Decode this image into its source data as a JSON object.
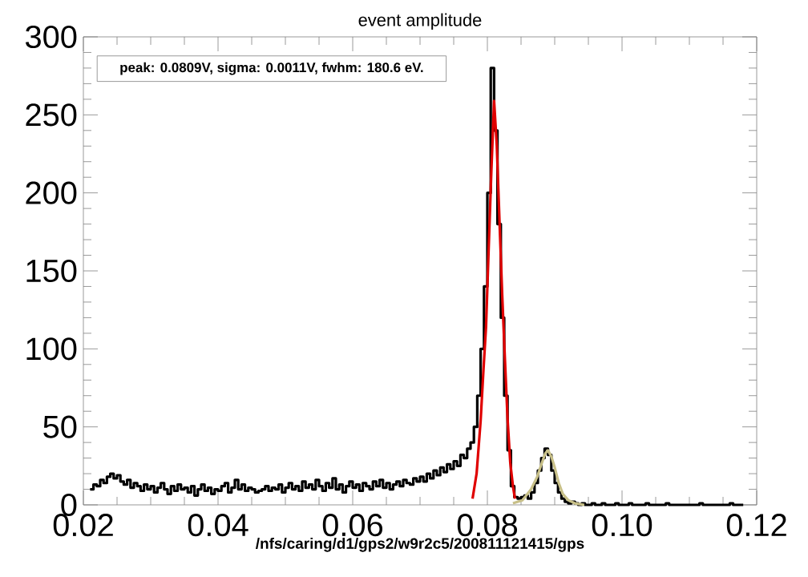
{
  "chart_data": {
    "type": "histogram",
    "title": "event amplitude",
    "xlabel": "/nfs/caring/d1/gps2/w9r2c5/200811121415/gps",
    "annotations": [
      "peak: 0.0809V, sigma: 0.0011V, fwhm:   180.6 eV."
    ],
    "xlim": [
      0.02,
      0.12
    ],
    "ylim": [
      0,
      300
    ],
    "xticks": [
      0.02,
      0.04,
      0.06,
      0.08,
      {
        "value": 0.1,
        "label": "0.10"
      },
      0.12
    ],
    "yticks": [
      0,
      50,
      100,
      150,
      200,
      250,
      300
    ],
    "series": [
      {
        "color": "#000000",
        "bins": [
          0.021,
          0.0215,
          0.022,
          0.0225,
          0.023,
          0.0235,
          0.024,
          0.0245,
          0.025,
          0.0255,
          0.026,
          0.0265,
          0.027,
          0.0275,
          0.028,
          0.0285,
          0.029,
          0.0295,
          0.03,
          0.0305,
          0.031,
          0.0315,
          0.032,
          0.0325,
          0.033,
          0.0335,
          0.034,
          0.0345,
          0.035,
          0.0355,
          0.036,
          0.0365,
          0.037,
          0.0375,
          0.038,
          0.0385,
          0.039,
          0.0395,
          0.04,
          0.0405,
          0.041,
          0.0415,
          0.042,
          0.0425,
          0.043,
          0.0435,
          0.044,
          0.0445,
          0.045,
          0.0455,
          0.046,
          0.0465,
          0.047,
          0.0475,
          0.048,
          0.0485,
          0.049,
          0.0495,
          0.05,
          0.0505,
          0.051,
          0.0515,
          0.052,
          0.0525,
          0.053,
          0.0535,
          0.054,
          0.0545,
          0.055,
          0.0555,
          0.056,
          0.0565,
          0.057,
          0.0575,
          0.058,
          0.0585,
          0.059,
          0.0595,
          0.06,
          0.0605,
          0.061,
          0.0615,
          0.062,
          0.0625,
          0.063,
          0.0635,
          0.064,
          0.0645,
          0.065,
          0.0655,
          0.066,
          0.0665,
          0.067,
          0.0675,
          0.068,
          0.0685,
          0.069,
          0.0695,
          0.07,
          0.0705,
          0.071,
          0.0715,
          0.072,
          0.0725,
          0.073,
          0.0735,
          0.074,
          0.0745,
          0.075,
          0.0755,
          0.076,
          0.0765,
          0.077,
          0.0775,
          0.078,
          0.0785,
          0.079,
          0.0795,
          0.08,
          0.0805,
          0.081,
          0.0815,
          0.082,
          0.0825,
          0.083,
          0.0835,
          0.084,
          0.0845,
          0.085,
          0.0855,
          0.086,
          0.0865,
          0.087,
          0.0875,
          0.088,
          0.0885,
          0.089,
          0.0895,
          0.09,
          0.0905,
          0.091,
          0.0915,
          0.092,
          0.0925,
          0.093,
          0.0935,
          0.094,
          0.0945,
          0.095,
          0.0955,
          0.096,
          0.0965,
          0.097,
          0.0975,
          0.098,
          0.0985,
          0.099,
          0.0995,
          0.1,
          0.1005,
          0.101,
          0.1015,
          0.102,
          0.1025,
          0.103,
          0.1035,
          0.104,
          0.1045,
          0.105,
          0.1055,
          0.106,
          0.1065,
          0.107,
          0.1075,
          0.108,
          0.1085,
          0.109,
          0.1095,
          0.11,
          0.1105,
          0.111,
          0.1115,
          0.112,
          0.1125,
          0.113,
          0.1135,
          0.114,
          0.1145,
          0.115,
          0.1155,
          0.116,
          0.1165,
          0.117,
          0.1175,
          0.118
        ],
        "values": [
          10,
          13,
          12,
          16,
          14,
          18,
          20,
          17,
          19,
          15,
          13,
          16,
          11,
          14,
          12,
          9,
          13,
          10,
          12,
          8,
          11,
          14,
          10,
          7,
          12,
          9,
          13,
          10,
          11,
          8,
          12,
          6,
          10,
          13,
          9,
          11,
          7,
          10,
          9,
          12,
          14,
          8,
          11,
          16,
          10,
          13,
          9,
          11,
          10,
          8,
          9,
          10,
          12,
          9,
          11,
          10,
          13,
          8,
          11,
          14,
          10,
          12,
          9,
          15,
          11,
          13,
          10,
          16,
          12,
          9,
          14,
          11,
          17,
          10,
          13,
          8,
          12,
          15,
          11,
          13,
          9,
          14,
          12,
          10,
          15,
          12,
          16,
          11,
          14,
          10,
          13,
          15,
          12,
          16,
          14,
          13,
          17,
          15,
          18,
          15,
          20,
          17,
          22,
          19,
          24,
          21,
          26,
          23,
          28,
          25,
          32,
          30,
          36,
          40,
          50,
          70,
          100,
          140,
          200,
          280,
          240,
          180,
          120,
          70,
          35,
          12,
          5,
          4,
          5,
          6,
          4,
          8,
          14,
          22,
          30,
          36,
          32,
          22,
          14,
          8,
          4,
          2,
          1,
          2,
          1,
          0,
          1,
          0,
          0,
          1,
          0,
          0,
          1,
          0,
          0,
          0,
          1,
          0,
          0,
          0,
          1,
          0,
          0,
          0,
          0,
          1,
          0,
          0,
          0,
          0,
          0,
          1,
          0,
          0,
          0,
          0,
          0,
          0,
          0,
          0,
          0,
          1,
          0,
          0,
          0,
          0,
          0,
          0,
          0,
          0,
          1,
          0,
          0,
          0
        ]
      },
      {
        "type": "line",
        "color": "#e00000",
        "x": [
          0.0778,
          0.0784,
          0.079,
          0.0794,
          0.0798,
          0.0802,
          0.0806,
          0.081,
          0.0814,
          0.0818,
          0.0822,
          0.0826,
          0.083,
          0.0834,
          0.0838,
          0.0841
        ],
        "values": [
          4,
          20,
          54,
          85,
          114,
          165,
          215,
          259,
          230,
          182,
          135,
          94,
          55,
          27,
          12,
          4
        ]
      },
      {
        "type": "line",
        "color": "#c8c088",
        "x": [
          0.0838,
          0.0852,
          0.0865,
          0.0874,
          0.0881,
          0.0886,
          0.089,
          0.0895,
          0.09,
          0.0906,
          0.0912,
          0.092,
          0.093,
          0.0944
        ],
        "values": [
          1,
          3,
          10,
          18,
          27,
          33,
          35,
          31,
          24,
          14,
          7,
          3,
          1,
          0
        ]
      }
    ]
  }
}
